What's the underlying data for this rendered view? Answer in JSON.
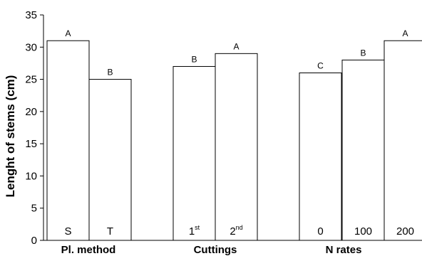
{
  "chart_data": {
    "type": "bar",
    "title": "",
    "xlabel": "",
    "ylabel": "Lenght of stems (cm)",
    "ylim": [
      0,
      35
    ],
    "yticks": [
      0,
      5,
      10,
      15,
      20,
      25,
      30,
      35
    ],
    "grid": false,
    "legend": "none",
    "groups": [
      {
        "name": "Pl. method",
        "bars": [
          {
            "label": "S",
            "sup": "",
            "value": 31,
            "letter": "A"
          },
          {
            "label": "T",
            "sup": "",
            "value": 25,
            "letter": "B"
          }
        ]
      },
      {
        "name": "Cuttings",
        "bars": [
          {
            "label": "1",
            "sup": "st",
            "value": 27,
            "letter": "B"
          },
          {
            "label": "2",
            "sup": "nd",
            "value": 29,
            "letter": "A"
          }
        ]
      },
      {
        "name": "N rates",
        "bars": [
          {
            "label": "0",
            "sup": "",
            "value": 26,
            "letter": "C"
          },
          {
            "label": "100",
            "sup": "",
            "value": 28,
            "letter": "B"
          },
          {
            "label": "200",
            "sup": "",
            "value": 31,
            "letter": "A"
          }
        ]
      }
    ],
    "colors": {
      "bar_fill": "#ffffff",
      "bar_stroke": "#000000",
      "axis": "#000000"
    }
  }
}
